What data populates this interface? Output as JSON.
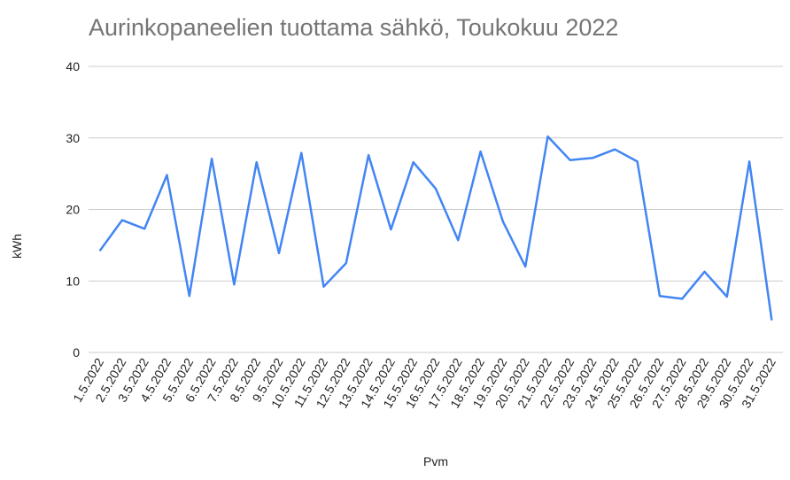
{
  "chart_data": {
    "type": "line",
    "title": "Aurinkopaneelien tuottama sähkö, Toukokuu 2022",
    "x_label": "Pvm",
    "y_label": "kWh",
    "categories": [
      "1.5.2022",
      "2.5.2022",
      "3.5.2022",
      "4.5.2022",
      "5.5.2022",
      "6.5.2022",
      "7.5.2022",
      "8.5.2022",
      "9.5.2022",
      "10.5.2022",
      "11.5.2022",
      "12.5.2022",
      "13.5.2022",
      "14.5.2022",
      "15.5.2022",
      "16.5.2022",
      "17.5.2022",
      "18.5.2022",
      "19.5.2022",
      "20.5.2022",
      "21.5.2022",
      "22.5.2022",
      "23.5.2022",
      "24.5.2022",
      "25.5.2022",
      "26.5.2022",
      "27.5.2022",
      "28.5.2022",
      "29.5.2022",
      "30.5.2022",
      "31.5.2022"
    ],
    "values": [
      14.2,
      18.5,
      17.3,
      24.8,
      7.9,
      27.1,
      9.5,
      26.6,
      13.9,
      27.9,
      9.2,
      12.5,
      27.6,
      17.2,
      26.6,
      22.9,
      15.7,
      28.1,
      18.3,
      12.0,
      30.2,
      26.9,
      27.2,
      28.4,
      26.7,
      7.9,
      7.5,
      11.3,
      7.8,
      26.7,
      4.5
    ],
    "color": "#4285f4",
    "ylim": [
      0,
      40
    ],
    "yticks": [
      0,
      10,
      20,
      30,
      40
    ],
    "grid": true
  }
}
